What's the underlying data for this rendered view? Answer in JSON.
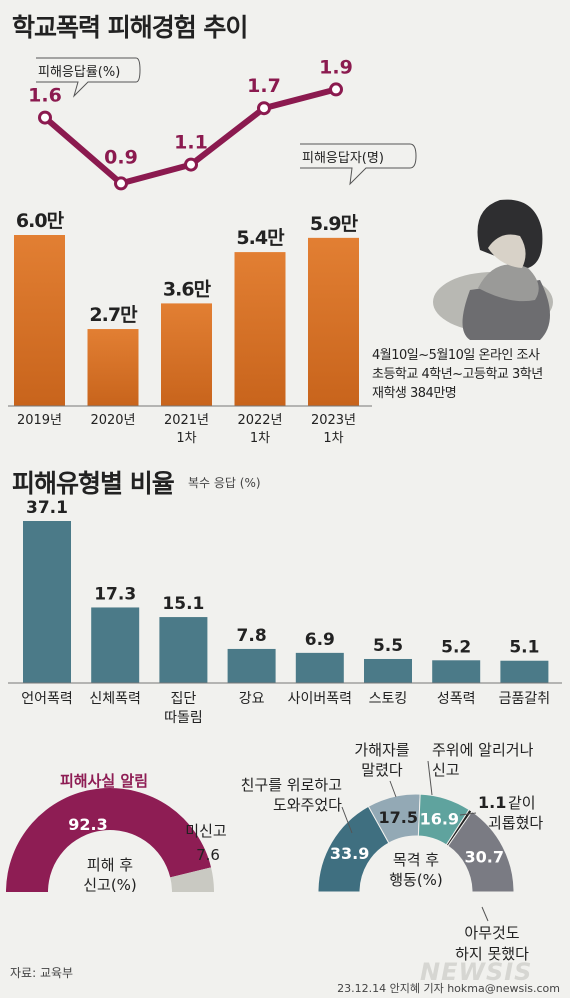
{
  "chart_data": [
    {
      "type": "bar",
      "title": "학교폭력 피해경험 추이",
      "categories": [
        [
          "2019년"
        ],
        [
          "2020년"
        ],
        [
          "2021년",
          "1차"
        ],
        [
          "2022년",
          "1차"
        ],
        [
          "2023년",
          "1차"
        ]
      ],
      "series": [
        {
          "name": "피해응답자(명)",
          "values": [
            60000,
            27000,
            36000,
            54000,
            59000
          ],
          "labels": [
            "6.0만",
            "2.7만",
            "3.6만",
            "5.4만",
            "5.9만"
          ]
        }
      ],
      "colors": {
        "bar_top": "#e07a2e",
        "bar_bottom": "#c8641c"
      }
    },
    {
      "type": "line",
      "categories": [
        "2019년",
        "2020년",
        "2021년",
        "2022년",
        "2023년"
      ],
      "series": [
        {
          "name": "피해응답률(%)",
          "values": [
            1.6,
            0.9,
            1.1,
            1.7,
            1.9
          ]
        }
      ],
      "colors": {
        "line": "#8b1a4f"
      }
    },
    {
      "type": "bar",
      "title": "피해유형별 비율",
      "subtitle": "복수 응답 (%)",
      "categories": [
        [
          "언어폭력"
        ],
        [
          "신체폭력"
        ],
        [
          "집단",
          "따돌림"
        ],
        [
          "강요"
        ],
        [
          "사이버폭력"
        ],
        [
          "스토킹"
        ],
        [
          "성폭력"
        ],
        [
          "금품갈취"
        ]
      ],
      "values": [
        37.1,
        17.3,
        15.1,
        7.8,
        6.9,
        5.5,
        5.2,
        5.1
      ],
      "colors": {
        "bar": "#4b7a88"
      }
    },
    {
      "type": "pie",
      "title": "피해사실 알림",
      "center_label": "피해 후 신고(%)",
      "slices": [
        {
          "label": "",
          "value": 92.3,
          "color": "#8e1d54"
        },
        {
          "label": "미신고",
          "value": 7.6,
          "color": "#c9c9c2"
        }
      ]
    },
    {
      "type": "pie",
      "center_label": "목격 후 행동(%)",
      "slices": [
        {
          "label": "친구를 위로하고 도와주었다",
          "value": 33.9,
          "color": "#3f6f80"
        },
        {
          "label": "가해자를 말렸다",
          "value": 17.5,
          "color": "#93a9b5"
        },
        {
          "label": "주위에 알리거나 신고",
          "value": 16.9,
          "color": "#5fa39e"
        },
        {
          "label": "같이 괴롭혔다",
          "value": 1.1,
          "color": "#222222"
        },
        {
          "label": "아무것도 하지 못했다",
          "value": 30.7,
          "color": "#7a7b83"
        }
      ]
    }
  ],
  "survey_note": [
    "4월10일~5월10일 온라인 조사",
    "초등학교 4학년~고등학교 3학년",
    "재학생 384만명"
  ],
  "source": "자료: 교육부",
  "credit": "23.12.14 안지혜 기자 hokma@newsis.com",
  "watermark": "NEWSIS"
}
